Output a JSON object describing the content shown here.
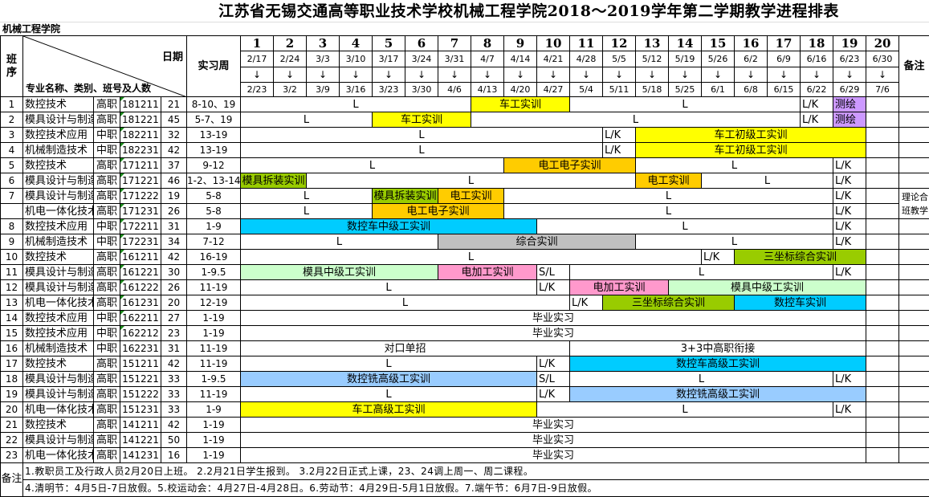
{
  "title": "江苏省无锡交通高等职业技术学校机械工程学院2018～2019学年第二学期教学进程排表",
  "department": "机械工程学院",
  "header": {
    "seq": "班序",
    "date_label": "日期",
    "major_label": "专业名称、类别、班号及人数",
    "practice_weeks": "实习周",
    "remarks": "备注",
    "arrow": "↓",
    "weeks": [
      {
        "n": "1",
        "start": "2/17",
        "end": "2/23"
      },
      {
        "n": "2",
        "start": "2/24",
        "end": "3/2"
      },
      {
        "n": "3",
        "start": "3/3",
        "end": "3/9"
      },
      {
        "n": "4",
        "start": "3/10",
        "end": "3/16"
      },
      {
        "n": "5",
        "start": "3/17",
        "end": "3/23"
      },
      {
        "n": "6",
        "start": "3/24",
        "end": "3/30"
      },
      {
        "n": "7",
        "start": "3/31",
        "end": "4/6"
      },
      {
        "n": "8",
        "start": "4/7",
        "end": "4/13"
      },
      {
        "n": "9",
        "start": "4/14",
        "end": "4/20"
      },
      {
        "n": "10",
        "start": "4/21",
        "end": "4/27"
      },
      {
        "n": "11",
        "start": "4/28",
        "end": "5/4"
      },
      {
        "n": "12",
        "start": "5/5",
        "end": "5/11"
      },
      {
        "n": "13",
        "start": "5/12",
        "end": "5/18"
      },
      {
        "n": "14",
        "start": "5/19",
        "end": "5/25"
      },
      {
        "n": "15",
        "start": "5/26",
        "end": "6/1"
      },
      {
        "n": "16",
        "start": "6/2",
        "end": "6/8"
      },
      {
        "n": "17",
        "start": "6/9",
        "end": "6/15"
      },
      {
        "n": "18",
        "start": "6/16",
        "end": "6/22"
      },
      {
        "n": "19",
        "start": "6/23",
        "end": "6/29"
      },
      {
        "n": "20",
        "start": "6/30",
        "end": "7/6"
      }
    ]
  },
  "colors": {
    "yellow": "#ffff00",
    "purple": "#cc99ff",
    "orange": "#ffcc00",
    "olive": "#99cc00",
    "cyan": "#00ccff",
    "gray": "#c0c0c0",
    "mint": "#ccffcc",
    "pink": "#ff99cc",
    "sky": "#99ccff"
  },
  "rows": [
    {
      "no": "1",
      "major": "数控技术",
      "type": "高职",
      "class": "181211",
      "count": "21",
      "weeks": "8-10、19",
      "segments": [
        {
          "w": [
            1,
            7
          ],
          "text": "L"
        },
        {
          "w": [
            8,
            10
          ],
          "text": "车工实训",
          "color": "#ffff00"
        },
        {
          "w": [
            11,
            17
          ],
          "text": "L"
        },
        {
          "w": [
            18,
            18
          ],
          "text": "L/K"
        },
        {
          "w": [
            19,
            19
          ],
          "text": "测绘",
          "color": "#cc99ff"
        }
      ]
    },
    {
      "no": "2",
      "major": "模具设计与制造",
      "type": "高职",
      "class": "181221",
      "count": "45",
      "weeks": "5-7、19",
      "segments": [
        {
          "w": [
            1,
            4
          ],
          "text": "L"
        },
        {
          "w": [
            5,
            7
          ],
          "text": "车工实训",
          "color": "#ffff00"
        },
        {
          "w": [
            8,
            17
          ],
          "text": "L"
        },
        {
          "w": [
            18,
            18
          ],
          "text": "L/K"
        },
        {
          "w": [
            19,
            19
          ],
          "text": "测绘",
          "color": "#cc99ff"
        }
      ]
    },
    {
      "no": "3",
      "major": "数控技术应用",
      "type": "中职",
      "class": "182211",
      "count": "32",
      "weeks": "13-19",
      "segments": [
        {
          "w": [
            1,
            11
          ],
          "text": "L"
        },
        {
          "w": [
            12,
            12
          ],
          "text": "L/K"
        },
        {
          "w": [
            13,
            19
          ],
          "text": "车工初级工实训",
          "color": "#ffff00"
        }
      ]
    },
    {
      "no": "4",
      "major": "机械制造技术（",
      "type": "中职",
      "class": "182231",
      "count": "42",
      "weeks": "13-19",
      "segments": [
        {
          "w": [
            1,
            11
          ],
          "text": "L"
        },
        {
          "w": [
            12,
            12
          ],
          "text": "L/K"
        },
        {
          "w": [
            13,
            19
          ],
          "text": "车工初级工实训",
          "color": "#ffff00"
        }
      ]
    },
    {
      "no": "5",
      "major": "数控技术",
      "type": "高职",
      "class": "171211",
      "count": "37",
      "weeks": "9-12",
      "segments": [
        {
          "w": [
            1,
            8
          ],
          "text": "L"
        },
        {
          "w": [
            9,
            12
          ],
          "text": "电工电子实训",
          "color": "#ffcc00"
        },
        {
          "w": [
            13,
            18
          ],
          "text": "L"
        },
        {
          "w": [
            19,
            19
          ],
          "text": "L/K"
        }
      ]
    },
    {
      "no": "6",
      "major": "模具设计与制造",
      "type": "高职",
      "class": "171221",
      "count": "46",
      "weeks": "1-2、13-14",
      "segments": [
        {
          "w": [
            1,
            2
          ],
          "text": "模具拆装实训",
          "color": "#99cc00"
        },
        {
          "w": [
            3,
            12
          ],
          "text": "L"
        },
        {
          "w": [
            13,
            14
          ],
          "text": "电工实训",
          "color": "#ffcc00"
        },
        {
          "w": [
            15,
            18
          ],
          "text": "L"
        },
        {
          "w": [
            19,
            19
          ],
          "text": "L/K"
        }
      ]
    },
    {
      "no": "7",
      "major": "模具设计与制造",
      "type": "高职",
      "class": "171222",
      "count": "19",
      "weeks": "5-8",
      "remark": "理论合班教学",
      "segments": [
        {
          "w": [
            1,
            4
          ],
          "text": "L"
        },
        {
          "w": [
            5,
            6
          ],
          "text": "模具拆装实训",
          "color": "#99cc00"
        },
        {
          "w": [
            7,
            8
          ],
          "text": "电工实训",
          "color": "#ffcc00"
        },
        {
          "w": [
            9,
            18
          ],
          "text": "L"
        },
        {
          "w": [
            19,
            19
          ],
          "text": "L/K"
        }
      ]
    },
    {
      "no": "",
      "major": "机电一体化技术",
      "type": "高职",
      "class": "171231",
      "count": "26",
      "weeks": "5-8",
      "segments": [
        {
          "w": [
            1,
            4
          ],
          "text": "L"
        },
        {
          "w": [
            5,
            8
          ],
          "text": "电工电子实训",
          "color": "#ffcc00"
        },
        {
          "w": [
            9,
            18
          ],
          "text": "L"
        },
        {
          "w": [
            19,
            19
          ],
          "text": "L/K"
        }
      ]
    },
    {
      "no": "8",
      "major": "数控技术应用",
      "type": "中职",
      "class": "172211",
      "count": "31",
      "weeks": "1-9",
      "segments": [
        {
          "w": [
            1,
            9
          ],
          "text": "数控车中级工实训",
          "color": "#00ccff"
        },
        {
          "w": [
            10,
            18
          ],
          "text": "L"
        },
        {
          "w": [
            19,
            19
          ],
          "text": "L/K"
        }
      ]
    },
    {
      "no": "9",
      "major": "机械制造技术（",
      "type": "中职",
      "class": "172231",
      "count": "34",
      "weeks": "7-12",
      "segments": [
        {
          "w": [
            1,
            6
          ],
          "text": "L"
        },
        {
          "w": [
            7,
            12
          ],
          "text": "综合实训",
          "color": "#c0c0c0"
        },
        {
          "w": [
            13,
            18
          ],
          "text": "L"
        },
        {
          "w": [
            19,
            19
          ],
          "text": "L/K"
        }
      ]
    },
    {
      "no": "10",
      "major": "数控技术",
      "type": "高职",
      "class": "161211",
      "count": "42",
      "weeks": "16-19",
      "segments": [
        {
          "w": [
            1,
            14
          ],
          "text": "L"
        },
        {
          "w": [
            15,
            15
          ],
          "text": "L/K"
        },
        {
          "w": [
            16,
            19
          ],
          "text": "三坐标综合实训",
          "color": "#99cc00"
        }
      ]
    },
    {
      "no": "11",
      "major": "模具设计与制造",
      "type": "高职",
      "class": "161221",
      "count": "30",
      "weeks": "1-9.5",
      "segments": [
        {
          "w": [
            1,
            6
          ],
          "text": "模具中级工实训",
          "color": "#ccffcc"
        },
        {
          "w": [
            7,
            9
          ],
          "text": "电加工实训",
          "color": "#ff99cc"
        },
        {
          "w": [
            10,
            10
          ],
          "text": "S/L"
        },
        {
          "w": [
            11,
            18
          ],
          "text": "L"
        },
        {
          "w": [
            19,
            19
          ],
          "text": "L/K"
        }
      ]
    },
    {
      "no": "12",
      "major": "模具设计与制造",
      "type": "高职",
      "class": "161222",
      "count": "26",
      "weeks": "11-19",
      "segments": [
        {
          "w": [
            1,
            9
          ],
          "text": "L"
        },
        {
          "w": [
            10,
            10
          ],
          "text": "L/K"
        },
        {
          "w": [
            11,
            13
          ],
          "text": "电加工实训",
          "color": "#ff99cc"
        },
        {
          "w": [
            14,
            19
          ],
          "text": "模具中级工实训",
          "color": "#ccffcc"
        }
      ]
    },
    {
      "no": "13",
      "major": "机电一体化技术",
      "type": "高职",
      "class": "161231",
      "count": "20",
      "weeks": "12-19",
      "segments": [
        {
          "w": [
            1,
            10
          ],
          "text": "L"
        },
        {
          "w": [
            11,
            11
          ],
          "text": "L/K"
        },
        {
          "w": [
            12,
            15
          ],
          "text": "三坐标综合实训",
          "color": "#99cc00"
        },
        {
          "w": [
            16,
            19
          ],
          "text": "数控车实训",
          "color": "#00ccff"
        }
      ]
    },
    {
      "no": "14",
      "major": "数控技术应用",
      "type": "中职",
      "class": "162211",
      "count": "27",
      "weeks": "1-19",
      "segments": [
        {
          "w": [
            1,
            19
          ],
          "text": "毕业实习"
        }
      ]
    },
    {
      "no": "15",
      "major": "数控技术应用",
      "type": "中职",
      "class": "162212",
      "count": "23",
      "weeks": "1-19",
      "segments": [
        {
          "w": [
            1,
            19
          ],
          "text": "毕业实习"
        }
      ]
    },
    {
      "no": "16",
      "major": "机械制造技术（",
      "type": "中职",
      "class": "162231",
      "count": "31",
      "weeks": "11-19",
      "segments": [
        {
          "w": [
            1,
            10
          ],
          "text": "对口单招"
        },
        {
          "w": [
            11,
            19
          ],
          "text": "3+3中高职衔接"
        }
      ]
    },
    {
      "no": "17",
      "major": "数控技术",
      "type": "高职",
      "class": "151211",
      "count": "42",
      "weeks": "11-19",
      "segments": [
        {
          "w": [
            1,
            9
          ],
          "text": "L"
        },
        {
          "w": [
            10,
            10
          ],
          "text": "L/K"
        },
        {
          "w": [
            11,
            19
          ],
          "text": "数控车高级工实训",
          "color": "#00ccff"
        }
      ]
    },
    {
      "no": "18",
      "major": "模具设计与制造",
      "type": "高职",
      "class": "151221",
      "count": "33",
      "weeks": "1-9.5",
      "segments": [
        {
          "w": [
            1,
            9
          ],
          "text": "数控铣高级工实训",
          "color": "#99ccff"
        },
        {
          "w": [
            10,
            10
          ],
          "text": "S/L"
        },
        {
          "w": [
            11,
            18
          ],
          "text": "L"
        },
        {
          "w": [
            19,
            19
          ],
          "text": "L/K"
        }
      ]
    },
    {
      "no": "19",
      "major": "模具设计与制造",
      "type": "高职",
      "class": "151222",
      "count": "33",
      "weeks": "11-19",
      "segments": [
        {
          "w": [
            1,
            9
          ],
          "text": "L"
        },
        {
          "w": [
            10,
            10
          ],
          "text": "L/K"
        },
        {
          "w": [
            11,
            19
          ],
          "text": "数控铣高级工实训",
          "color": "#99ccff"
        }
      ]
    },
    {
      "no": "20",
      "major": "机电一体化技术",
      "type": "高职",
      "class": "151231",
      "count": "33",
      "weeks": "1-9",
      "segments": [
        {
          "w": [
            1,
            9
          ],
          "text": "车工高级工实训",
          "color": "#ffff00"
        },
        {
          "w": [
            10,
            18
          ],
          "text": "L"
        },
        {
          "w": [
            19,
            19
          ],
          "text": "L/K"
        }
      ]
    },
    {
      "no": "21",
      "major": "数控技术",
      "type": "高职",
      "class": "141211",
      "count": "42",
      "weeks": "1-19",
      "segments": [
        {
          "w": [
            1,
            19
          ],
          "text": "毕业实习"
        }
      ]
    },
    {
      "no": "22",
      "major": "模具设计与制造",
      "type": "高职",
      "class": "141221",
      "count": "50",
      "weeks": "1-19",
      "segments": [
        {
          "w": [
            1,
            19
          ],
          "text": "毕业实习"
        }
      ]
    },
    {
      "no": "23",
      "major": "机电一体化技术",
      "type": "高职",
      "class": "141231",
      "count": "16",
      "weeks": "1-19",
      "segments": [
        {
          "w": [
            1,
            19
          ],
          "text": "毕业实习"
        }
      ]
    }
  ],
  "notes": {
    "label": "备注",
    "lines": [
      "1.教职员工及行政人员2月20日上班。      2.2月21日学生报到。      3.2月22日正式上课，23、24调上周一、周二课程。",
      "4.清明节：4月5日-7日放假。5.校运动会：4月27日-4月28日。6.劳动节：4月29日-5月1日放假。7.端午节：6月7日-9日放假。"
    ]
  }
}
